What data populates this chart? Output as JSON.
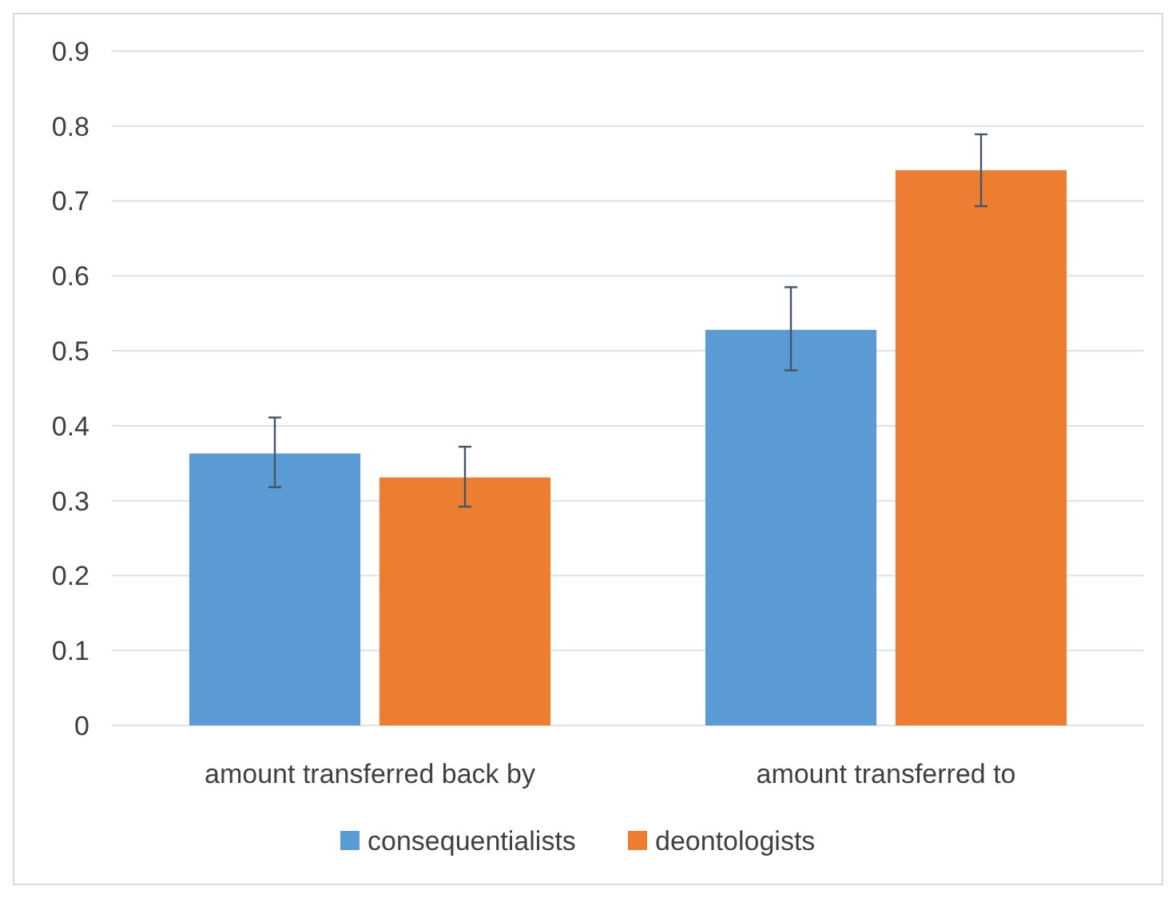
{
  "chart_data": {
    "type": "bar",
    "categories": [
      "amount transferred back by",
      "amount transferred to"
    ],
    "series": [
      {
        "name": "consequentialists",
        "color": "#5b9bd5",
        "values": [
          0.363,
          0.528
        ],
        "errors": [
          [
            0.318,
            0.411
          ],
          [
            0.474,
            0.585
          ]
        ]
      },
      {
        "name": "deontologists",
        "color": "#ed7d31",
        "values": [
          0.331,
          0.741
        ],
        "errors": [
          [
            0.292,
            0.372
          ],
          [
            0.693,
            0.789
          ]
        ]
      }
    ],
    "ylim": [
      0,
      0.9
    ],
    "yticks": [
      0,
      0.1,
      0.2,
      0.3,
      0.4,
      0.5,
      0.6,
      0.7,
      0.8,
      0.9
    ],
    "grid": "y",
    "legend": "bottom"
  }
}
